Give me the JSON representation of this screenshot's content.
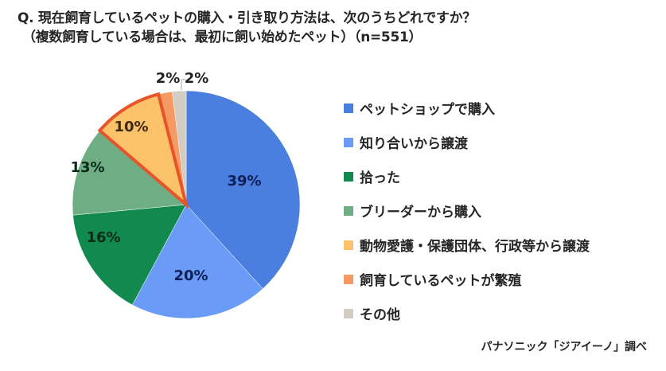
{
  "header": {
    "title": "Q. 現在飼育しているペットの購入・引き取り方法は、次のうちどれですか？",
    "subtitle": "（複数飼育している場合は、最初に飼い始めたペット）（n=551）"
  },
  "legend": {
    "items": [
      {
        "label": "ペットショップで購入",
        "color": "#4a7fe0"
      },
      {
        "label": "知り合いから譲渡",
        "color": "#6a9cf7"
      },
      {
        "label": "拾った",
        "color": "#11894f"
      },
      {
        "label": "ブリーダーから購入",
        "color": "#6fae84"
      },
      {
        "label": "動物愛護・保護団体、行政等から譲渡",
        "color": "#fbc26a"
      },
      {
        "label": "飼育しているペットが繁殖",
        "color": "#f59a63"
      },
      {
        "label": "その他",
        "color": "#d2ccc2"
      }
    ]
  },
  "source": "パナソニック「ジアイーノ」調べ",
  "slice_labels": [
    "39%",
    "20%",
    "16%",
    "13%",
    "10%",
    "2%",
    "2%"
  ],
  "chart_data": {
    "type": "pie",
    "title": "Q. 現在飼育しているペットの購入・引き取り方法は、次のうちどれですか？（複数飼育している場合は、最初に飼い始めたペット）（n=551）",
    "categories": [
      "ペットショップで購入",
      "知り合いから譲渡",
      "拾った",
      "ブリーダーから購入",
      "動物愛護・保護団体、行政等から譲渡",
      "飼育しているペットが繁殖",
      "その他"
    ],
    "values": [
      39,
      20,
      16,
      13,
      10,
      2,
      2
    ],
    "unit": "%",
    "colors": [
      "#4a7fe0",
      "#6a9cf7",
      "#11894f",
      "#6fae84",
      "#fbc26a",
      "#f59a63",
      "#d2ccc2"
    ],
    "highlighted": "動物愛護・保護団体、行政等から譲渡",
    "highlight_color": "#e8542a",
    "start_angle": "12 o'clock, clockwise",
    "legend_position": "right",
    "n": 551,
    "source": "パナソニック「ジアイーノ」調べ"
  }
}
